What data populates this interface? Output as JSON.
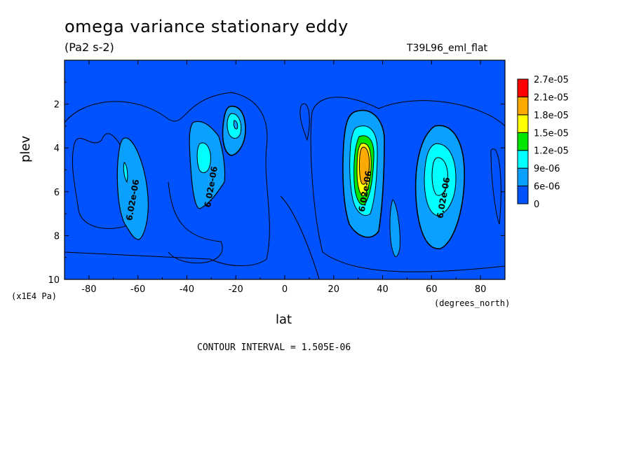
{
  "header": {
    "title": "omega variance stationary eddy",
    "units": "(Pa2 s-2)",
    "model": "T39L96_eml_flat"
  },
  "footer": {
    "contour_interval": "CONTOUR INTERVAL = 1.505E-06"
  },
  "chart_data": {
    "type": "heatmap",
    "title": "omega variance stationary eddy",
    "xlabel": "lat",
    "x_units": "(degrees_north)",
    "ylabel": "plev",
    "y_units": "(x1E4 Pa)",
    "xlim": [
      -90,
      90
    ],
    "ylim": [
      10,
      0
    ],
    "x_ticks": [
      -80,
      -60,
      -40,
      -20,
      0,
      20,
      40,
      60,
      80
    ],
    "y_ticks": [
      2,
      4,
      6,
      8,
      10
    ],
    "colorbar": {
      "labels": [
        "0",
        "6e-06",
        "9e-06",
        "1.2e-05",
        "1.5e-05",
        "1.8e-05",
        "2.1e-05",
        "2.7e-05"
      ],
      "colors": [
        "#0052ff",
        "#0aa0ff",
        "#00ffff",
        "#00e600",
        "#ffff00",
        "#ffaa00",
        "#ff0000"
      ]
    },
    "contour_labels": [
      {
        "text": "6.02e-06",
        "lat": -61,
        "plev": 6.4
      },
      {
        "text": "6.02e-06",
        "lat": -29,
        "plev": 5.8
      },
      {
        "text": "6.02e-06",
        "lat": 34,
        "plev": 6.0
      },
      {
        "text": "6.02e-06",
        "lat": 66,
        "plev": 6.3
      }
    ],
    "features": [
      {
        "lat": -63,
        "plev": 5.3,
        "peak": 1.1e-05
      },
      {
        "lat": -32,
        "plev": 4.6,
        "peak": 1e-05
      },
      {
        "lat": -21,
        "plev": 3.1,
        "peak": 1.2e-05
      },
      {
        "lat": 31,
        "plev": 4.8,
        "peak": 2e-05
      },
      {
        "lat": 44,
        "plev": 7.8,
        "peak": 7e-06
      },
      {
        "lat": 62,
        "plev": 5.5,
        "peak": 1.1e-05
      }
    ]
  }
}
